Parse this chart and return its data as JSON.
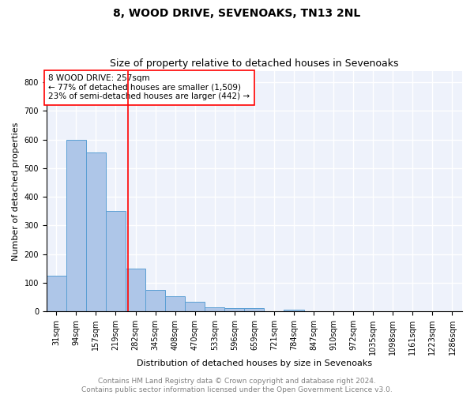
{
  "title1": "8, WOOD DRIVE, SEVENOAKS, TN13 2NL",
  "title2": "Size of property relative to detached houses in Sevenoaks",
  "xlabel": "Distribution of detached houses by size in Sevenoaks",
  "ylabel": "Number of detached properties",
  "categories": [
    "31sqm",
    "94sqm",
    "157sqm",
    "219sqm",
    "282sqm",
    "345sqm",
    "408sqm",
    "470sqm",
    "533sqm",
    "596sqm",
    "659sqm",
    "721sqm",
    "784sqm",
    "847sqm",
    "910sqm",
    "972sqm",
    "1035sqm",
    "1098sqm",
    "1161sqm",
    "1223sqm",
    "1286sqm"
  ],
  "values": [
    125,
    600,
    555,
    350,
    150,
    75,
    53,
    33,
    15,
    12,
    12,
    0,
    7,
    0,
    0,
    0,
    0,
    0,
    0,
    0,
    0
  ],
  "bar_color": "#aec6e8",
  "bar_edge_color": "#5a9fd4",
  "annotation_text": "8 WOOD DRIVE: 257sqm\n← 77% of detached houses are smaller (1,509)\n23% of semi-detached houses are larger (442) →",
  "annotation_box_color": "white",
  "annotation_box_edge_color": "red",
  "vline_color": "red",
  "vline_x": 3.62,
  "ylim": [
    0,
    840
  ],
  "yticks": [
    0,
    100,
    200,
    300,
    400,
    500,
    600,
    700,
    800
  ],
  "footer1": "Contains HM Land Registry data © Crown copyright and database right 2024.",
  "footer2": "Contains public sector information licensed under the Open Government Licence v3.0.",
  "bg_color": "#eef2fb",
  "grid_color": "white",
  "title1_fontsize": 10,
  "title2_fontsize": 9,
  "xlabel_fontsize": 8,
  "ylabel_fontsize": 8,
  "tick_fontsize": 7,
  "footer_fontsize": 6.5,
  "annotation_fontsize": 7.5
}
